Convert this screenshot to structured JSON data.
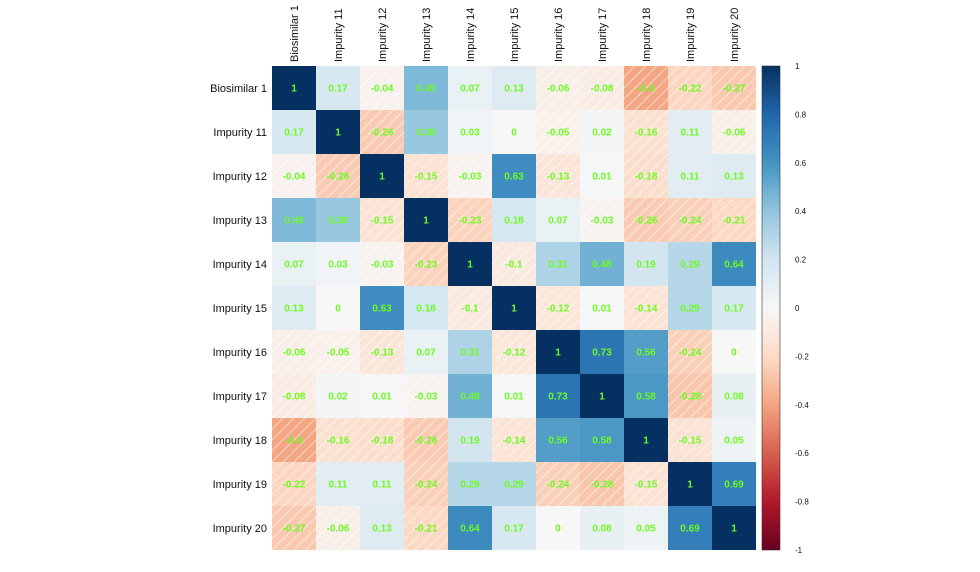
{
  "chart_data": {
    "type": "heatmap",
    "title": "",
    "xlabel": "",
    "ylabel": "",
    "variables": [
      "Biosimilar 1",
      "Impurity 11",
      "Impurity 12",
      "Impurity 13",
      "Impurity 14",
      "Impurity 15",
      "Impurity 16",
      "Impurity 17",
      "Impurity 18",
      "Impurity 19",
      "Impurity 20"
    ],
    "matrix": [
      [
        1,
        0.17,
        -0.04,
        0.45,
        0.07,
        0.13,
        -0.06,
        -0.08,
        -0.4,
        -0.22,
        -0.27
      ],
      [
        0.17,
        1,
        -0.26,
        0.38,
        0.03,
        0,
        -0.05,
        0.02,
        -0.16,
        0.11,
        -0.06
      ],
      [
        -0.04,
        -0.26,
        1,
        -0.15,
        -0.03,
        0.63,
        -0.13,
        0.01,
        -0.18,
        0.11,
        0.13
      ],
      [
        0.45,
        0.38,
        -0.15,
        1,
        -0.23,
        0.18,
        0.07,
        -0.03,
        -0.26,
        -0.24,
        -0.21
      ],
      [
        0.07,
        0.03,
        -0.03,
        -0.23,
        1,
        -0.1,
        0.31,
        0.48,
        0.19,
        0.29,
        0.64
      ],
      [
        0.13,
        0,
        0.63,
        0.18,
        -0.1,
        1,
        -0.12,
        0.01,
        -0.14,
        0.29,
        0.17
      ],
      [
        -0.06,
        -0.05,
        -0.13,
        0.07,
        0.31,
        -0.12,
        1,
        0.73,
        0.56,
        -0.24,
        0
      ],
      [
        -0.08,
        0.02,
        0.01,
        -0.03,
        0.48,
        0.01,
        0.73,
        1,
        0.58,
        -0.28,
        0.08
      ],
      [
        -0.4,
        -0.16,
        -0.18,
        -0.26,
        0.19,
        -0.14,
        0.56,
        0.58,
        1,
        -0.15,
        0.05
      ],
      [
        -0.22,
        0.11,
        0.11,
        -0.24,
        0.29,
        0.29,
        -0.24,
        -0.28,
        -0.15,
        1,
        0.69
      ],
      [
        -0.27,
        -0.06,
        0.13,
        -0.21,
        0.64,
        0.17,
        0,
        0.08,
        0.05,
        0.69,
        1
      ]
    ],
    "colorbar": {
      "range": [
        -1,
        1
      ],
      "ticks": [
        "1",
        "0.8",
        "0.6",
        "0.4",
        "0.2",
        "0",
        "-0.2",
        "-0.4",
        "-0.6",
        "-0.8",
        "-1"
      ]
    },
    "grid": false,
    "legend": "right"
  },
  "colors": {
    "cell_text": "#6cfc20",
    "positive_max": "#053061",
    "negative_max": "#67001f",
    "neutral": "#f7f7f7"
  }
}
